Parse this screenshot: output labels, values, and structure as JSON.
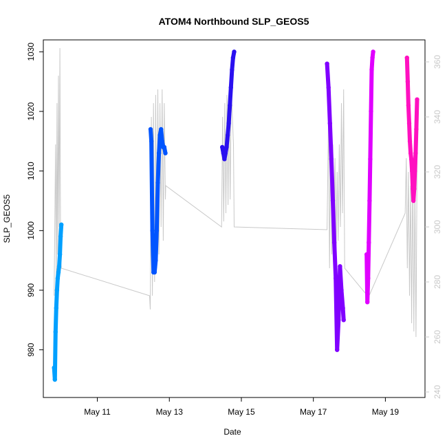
{
  "chart_data": {
    "type": "line",
    "title": "ATOM4 Northbound SLP_GEOS5",
    "xlabel": "Date",
    "ylabel": "SLP_GEOS5",
    "x_ticks": [
      "May 11",
      "May 13",
      "May 15",
      "May 17",
      "May 19"
    ],
    "x_tick_days": [
      11,
      13,
      15,
      17,
      19
    ],
    "xlim_days": [
      9.5,
      20.1
    ],
    "ylim": [
      972,
      1032
    ],
    "y_ticks": [
      980,
      990,
      1000,
      1010,
      1020,
      1030
    ],
    "y2_ticks": [
      240,
      260,
      280,
      300,
      320,
      340,
      360
    ],
    "y2lim": [
      238,
      368
    ],
    "colors": {
      "secondary_line": "#c8c8c8",
      "axis": "#000000",
      "right_axis": "#c8c8c8"
    },
    "secondary_series": {
      "axis": "right",
      "x": [
        9.8,
        9.84,
        9.86,
        9.88,
        9.9,
        9.92,
        9.94,
        9.96,
        9.98,
        10.0,
        12.45,
        12.47,
        12.5,
        12.53,
        12.56,
        12.59,
        12.62,
        12.65,
        12.68,
        12.71,
        12.74,
        12.77,
        12.8,
        12.83,
        12.86,
        12.89,
        12.9,
        14.45,
        14.48,
        14.51,
        14.54,
        14.57,
        14.6,
        14.63,
        14.66,
        14.69,
        14.72,
        14.75,
        14.78,
        14.8,
        17.38,
        17.42,
        17.45,
        17.48,
        17.51,
        17.54,
        17.57,
        17.6,
        17.63,
        17.66,
        17.69,
        17.72,
        17.75,
        17.78,
        17.81,
        17.84,
        17.87,
        18.5,
        18.55,
        19.55,
        19.58,
        19.61,
        19.64,
        19.67,
        19.7,
        19.73,
        19.76,
        19.79,
        19.82,
        19.85,
        19.88
      ],
      "y": [
        275,
        330,
        280,
        345,
        290,
        355,
        300,
        365,
        290,
        285,
        275,
        270,
        340,
        275,
        345,
        280,
        348,
        285,
        350,
        290,
        345,
        300,
        350,
        295,
        345,
        310,
        315,
        300,
        340,
        302,
        345,
        305,
        348,
        308,
        350,
        310,
        352,
        340,
        330,
        300,
        299,
        340,
        285,
        335,
        290,
        330,
        292,
        325,
        288,
        320,
        295,
        330,
        300,
        345,
        305,
        350,
        285,
        275,
        275,
        305,
        325,
        285,
        320,
        275,
        315,
        265,
        320,
        262,
        315,
        260,
        325
      ]
    },
    "series": [
      {
        "color": "#00a0ff",
        "x": [
          9.8,
          9.82,
          9.84,
          9.86,
          9.88,
          9.9,
          9.92,
          9.94,
          9.96,
          9.98,
          10.0
        ],
        "y": [
          977,
          975,
          983,
          987,
          990,
          992,
          993,
          994,
          996,
          999,
          1001
        ]
      },
      {
        "color": "#0055ff",
        "x": [
          12.48,
          12.5,
          12.53,
          12.56,
          12.59,
          12.62,
          12.65,
          12.68,
          12.71,
          12.74,
          12.77,
          12.8,
          12.83,
          12.86,
          12.89
        ],
        "y": [
          1017,
          1015,
          1000,
          993,
          993,
          995,
          1000,
          1008,
          1013,
          1016,
          1017,
          1015,
          1014,
          1014,
          1013
        ]
      },
      {
        "color": "#2a10f0",
        "x": [
          14.47,
          14.5,
          14.53,
          14.56,
          14.59,
          14.62,
          14.65,
          14.68,
          14.71,
          14.74,
          14.77,
          14.8
        ],
        "y": [
          1014,
          1013,
          1012,
          1013,
          1014,
          1016,
          1018,
          1021,
          1024,
          1027,
          1029,
          1030
        ]
      },
      {
        "color": "#8000ff",
        "x": [
          17.38,
          17.42,
          17.46,
          17.5,
          17.54,
          17.58,
          17.62,
          17.66,
          17.7,
          17.74,
          17.78,
          17.82,
          17.84
        ],
        "y": [
          1028,
          1024,
          1018,
          1012,
          1005,
          998,
          992,
          980,
          985,
          994,
          990,
          987,
          985
        ]
      },
      {
        "color": "#e000ff",
        "x": [
          18.48,
          18.5,
          18.52,
          18.54,
          18.56,
          18.58,
          18.6,
          18.62,
          18.64,
          18.66
        ],
        "y": [
          996,
          988,
          992,
          998,
          1005,
          1012,
          1020,
          1027,
          1029,
          1030
        ]
      },
      {
        "color": "#ff10c0",
        "x": [
          19.6,
          19.62,
          19.64,
          19.66,
          19.68,
          19.7,
          19.72,
          19.74,
          19.76,
          19.78,
          19.8,
          19.82,
          19.84,
          19.86,
          19.88
        ],
        "y": [
          1029,
          1025,
          1021,
          1018,
          1015,
          1013,
          1012,
          1010,
          1007,
          1005,
          1007,
          1010,
          1013,
          1017,
          1022
        ]
      }
    ]
  }
}
